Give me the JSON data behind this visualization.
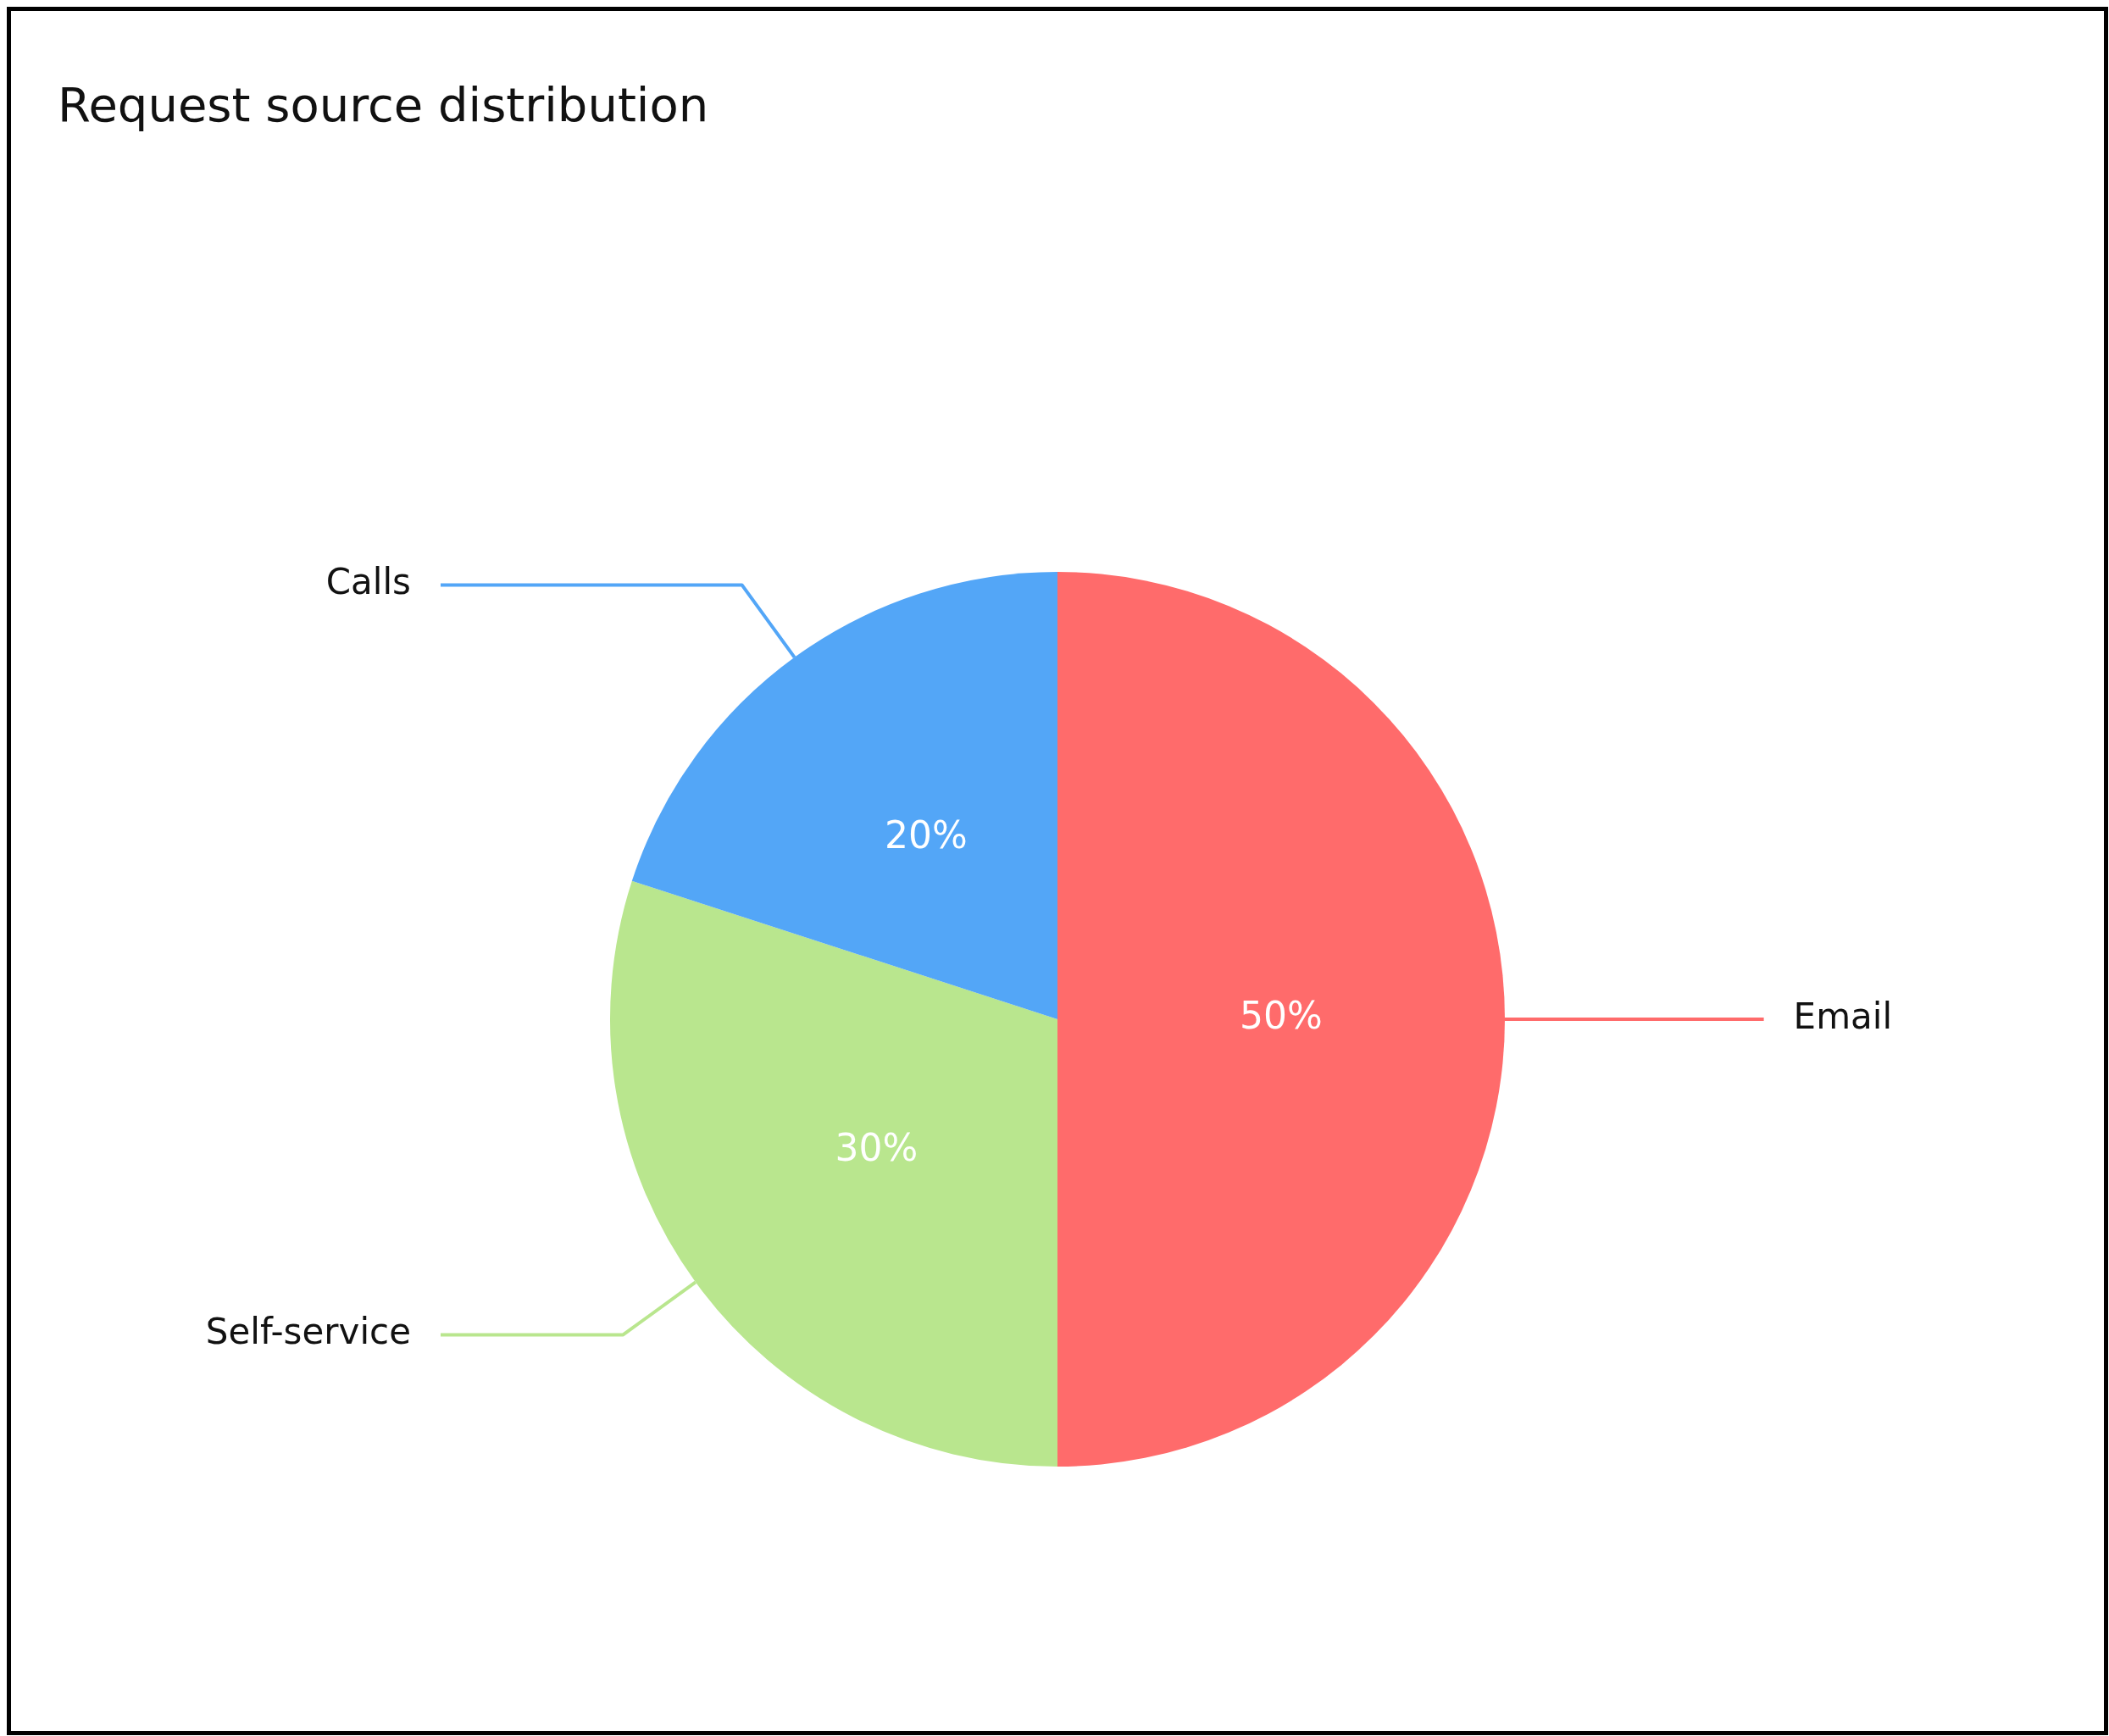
{
  "chart_data": {
    "type": "pie",
    "title": "Request source distribution",
    "categories": [
      "Email",
      "Self-service",
      "Calls"
    ],
    "values": [
      50,
      30,
      20
    ],
    "value_labels": [
      "50%",
      "30%",
      "20%"
    ],
    "colors": [
      "#ff6b6b",
      "#b9e68e",
      "#53a6f7"
    ],
    "legend": false
  }
}
